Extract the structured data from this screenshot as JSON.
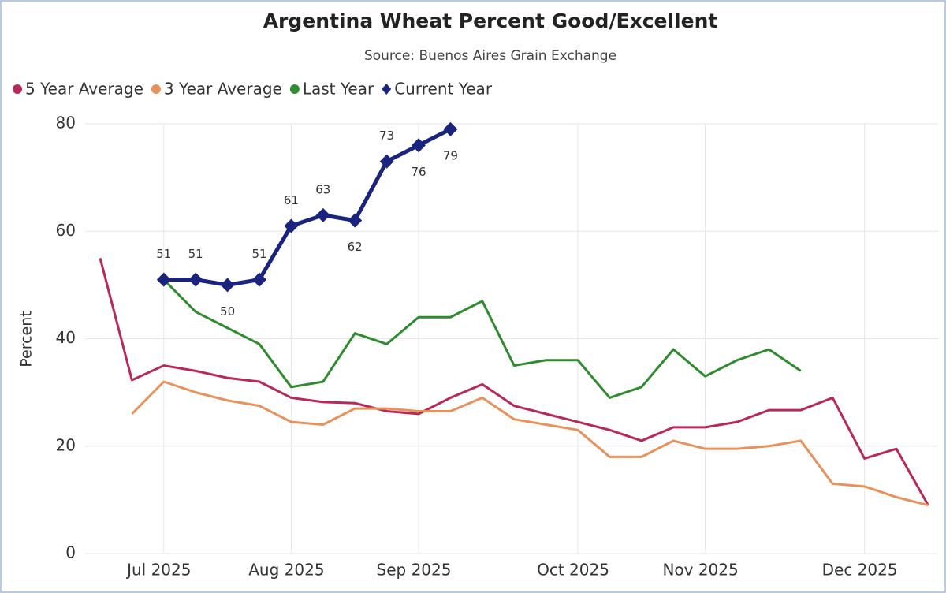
{
  "chart_data": {
    "type": "line",
    "title": "Argentina Wheat Percent Good/Excellent",
    "subtitle": "Source: Buenos Aires Grain Exchange",
    "y_label": "Percent",
    "categories": [
      null,
      null,
      "Jul 2025",
      null,
      null,
      null,
      "Aug 2025",
      null,
      null,
      null,
      "Sep 2025",
      null,
      null,
      null,
      null,
      "Oct 2025",
      null,
      null,
      null,
      "Nov 2025",
      null,
      null,
      null,
      null,
      "Dec 2025",
      null,
      null
    ],
    "series": [
      {
        "name": "5 Year Average",
        "color": "#b8285a",
        "values": [
          55,
          32.3,
          35,
          34,
          32.7,
          32,
          29,
          28.2,
          28,
          26.5,
          26,
          29,
          31.5,
          27.5,
          26,
          24.5,
          23,
          21,
          23.5,
          23.5,
          24.5,
          26.7,
          26.7,
          29,
          17.7,
          19.5,
          9
        ]
      },
      {
        "name": "3 Year Average",
        "color": "#e8915a",
        "values": [
          null,
          26,
          32,
          30,
          28.5,
          27.5,
          24.5,
          24,
          27,
          27,
          26.5,
          26.5,
          29,
          25,
          24,
          23,
          18,
          18,
          21,
          19.5,
          19.5,
          20,
          21,
          13,
          12.5,
          10.5,
          9
        ]
      },
      {
        "name": "Last Year",
        "color": "#2e8b2e",
        "values": [
          null,
          null,
          51,
          45,
          42,
          39,
          31,
          32,
          41,
          39,
          44,
          44,
          47,
          35,
          36,
          36,
          29,
          31,
          38,
          33,
          36,
          38,
          34,
          null,
          null,
          null,
          null
        ]
      },
      {
        "name": "Current Year",
        "color": "#1a237e",
        "marker": "diamond",
        "data_labels": true,
        "values": [
          null,
          null,
          51,
          51,
          50,
          51,
          61,
          63,
          62,
          73,
          76,
          79,
          null,
          null,
          null,
          null,
          null,
          null,
          null,
          null,
          null,
          null,
          null,
          null,
          null,
          null,
          null
        ]
      }
    ],
    "ylim": [
      0,
      80
    ],
    "yticks": [
      0,
      20,
      40,
      60,
      80
    ],
    "grid": true,
    "legend": "top-left"
  }
}
